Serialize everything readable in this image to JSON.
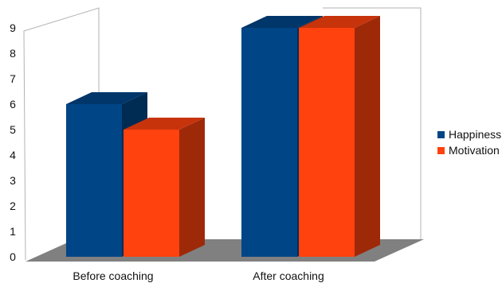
{
  "chart_data": {
    "type": "bar",
    "categories": [
      "Before coaching",
      "After coaching"
    ],
    "series": [
      {
        "name": "Happiness",
        "values": [
          6,
          9
        ],
        "color": "#004586"
      },
      {
        "name": "Motivation",
        "values": [
          5,
          9
        ],
        "color": "#ff420e"
      }
    ],
    "ylim": [
      0,
      9
    ],
    "yticks": [
      0,
      1,
      2,
      3,
      4,
      5,
      6,
      7,
      8,
      9
    ],
    "grid": false,
    "legend_position": "right",
    "style": "3d",
    "floor_color": "#808080"
  }
}
